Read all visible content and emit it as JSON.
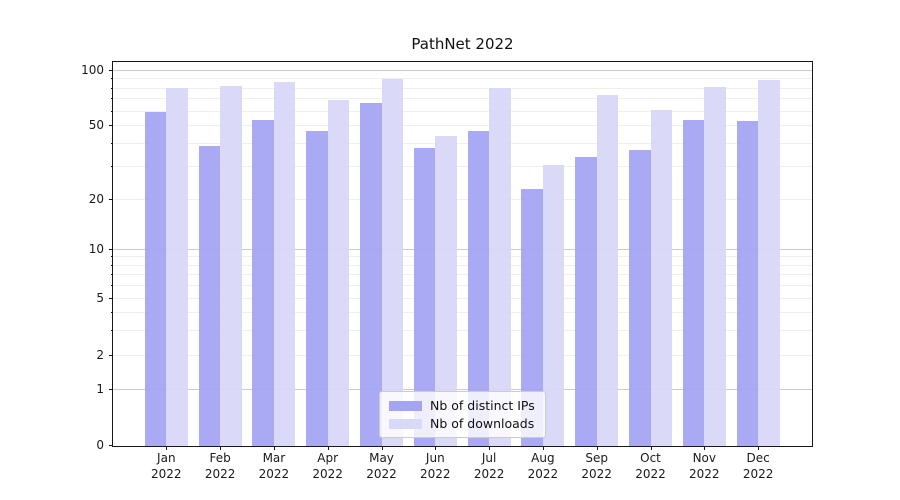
{
  "title": "PathNet 2022",
  "legend": {
    "items": [
      {
        "label": "Nb of distinct IPs",
        "color": "#a4a4f3"
      },
      {
        "label": "Nb of downloads",
        "color": "#d8d8f8"
      }
    ]
  },
  "x_axis": {
    "months": [
      "Jan",
      "Feb",
      "Mar",
      "Apr",
      "May",
      "Jun",
      "Jul",
      "Aug",
      "Sep",
      "Oct",
      "Nov",
      "Dec"
    ],
    "year": "2022"
  },
  "y_axis": {
    "tick_labels": [
      "0",
      "1",
      "2",
      "5",
      "10",
      "20",
      "50",
      "100"
    ]
  },
  "chart_data": {
    "type": "bar",
    "title": "PathNet 2022",
    "categories": [
      "Jan 2022",
      "Feb 2022",
      "Mar 2022",
      "Apr 2022",
      "May 2022",
      "Jun 2022",
      "Jul 2022",
      "Aug 2022",
      "Sep 2022",
      "Oct 2022",
      "Nov 2022",
      "Dec 2022"
    ],
    "series": [
      {
        "name": "Nb of distinct IPs",
        "color": "#a4a4f3",
        "values": [
          60,
          39,
          54,
          47,
          67,
          38,
          47,
          23,
          34,
          37,
          54,
          53
        ]
      },
      {
        "name": "Nb of downloads",
        "color": "#d8d8f8",
        "values": [
          81,
          83,
          87,
          69,
          90,
          44,
          81,
          31,
          74,
          61,
          82,
          89
        ]
      }
    ],
    "xlabel": "",
    "ylabel": "",
    "yscale": "symlog-like",
    "ylim": [
      0,
      112
    ],
    "y_ticks": [
      0,
      1,
      2,
      5,
      10,
      20,
      50,
      100
    ],
    "gridlines": {
      "major": [
        1,
        10,
        100
      ],
      "minor": [
        2,
        3,
        4,
        5,
        6,
        7,
        8,
        9,
        20,
        30,
        40,
        50,
        60,
        70,
        80,
        90
      ]
    },
    "grid": true,
    "legend_position": "lower center"
  }
}
